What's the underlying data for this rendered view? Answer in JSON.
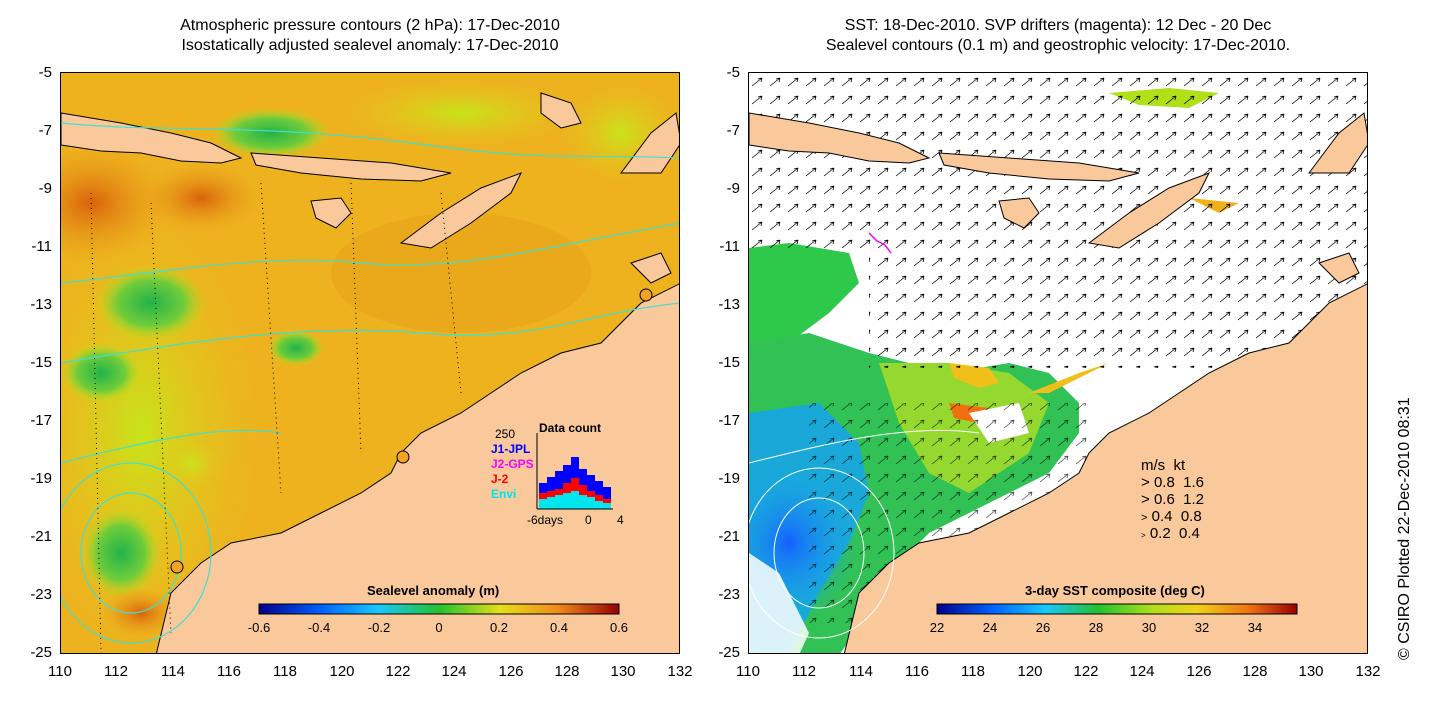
{
  "left_panel": {
    "title_line1": "Atmospheric pressure contours (2 hPa): 17-Dec-2010",
    "title_line2": "Isostatically adjusted sealevel anomaly: 17-Dec-2010",
    "colorbar": {
      "title": "Sealevel anomaly (m)",
      "ticks": [
        "-0.6",
        "-0.4",
        "-0.2",
        "0",
        "0.2",
        "0.4",
        "0.6"
      ],
      "range": [
        -0.6,
        0.6
      ]
    },
    "data_count_inset": {
      "title": "Data count",
      "ymax_label": "250",
      "series": [
        {
          "name": "J1-JPL",
          "color": "#0000ff"
        },
        {
          "name": "J2-GPS",
          "color": "#ff00ff"
        },
        {
          "name": "J-2",
          "color": "#ff0000"
        },
        {
          "name": "Envi",
          "color": "#00e5ee"
        }
      ],
      "x_labels": [
        "-6days",
        "0",
        "4"
      ]
    }
  },
  "right_panel": {
    "title_line1": "SST: 18-Dec-2010. SVP drifters (magenta): 12 Dec - 20 Dec",
    "title_line2": "Sealevel contours (0.1 m) and geostrophic velocity: 17-Dec-2010.",
    "colorbar": {
      "title": "3-day SST composite (deg C)",
      "ticks": [
        "22",
        "24",
        "26",
        "28",
        "30",
        "32",
        "34"
      ],
      "range": [
        22,
        35.5
      ]
    },
    "velocity_legend": {
      "header_ms": "m/s",
      "header_kt": "kt",
      "rows": [
        {
          "ms": "0.8",
          "kt": "1.6"
        },
        {
          "ms": "0.6",
          "kt": "1.2"
        },
        {
          "ms": "0.4",
          "kt": "0.8"
        },
        {
          "ms": "0.2",
          "kt": "0.4"
        }
      ]
    }
  },
  "axes": {
    "longitudes": [
      "110",
      "112",
      "114",
      "116",
      "118",
      "120",
      "122",
      "124",
      "126",
      "128",
      "130",
      "132"
    ],
    "latitudes": [
      "-5",
      "-7",
      "-9",
      "-11",
      "-13",
      "-15",
      "-17",
      "-19",
      "-21",
      "-23",
      "-25"
    ],
    "lon_range": [
      110,
      132
    ],
    "lat_range": [
      -25,
      -5
    ]
  },
  "colors": {
    "land": "#f9c99b",
    "coast_contour": "#000000",
    "sealevel_contour": "#40e0d0",
    "drifter": "#ff00ff"
  },
  "credit": "© CSIRO Plotted 22-Dec-2010 08:31"
}
